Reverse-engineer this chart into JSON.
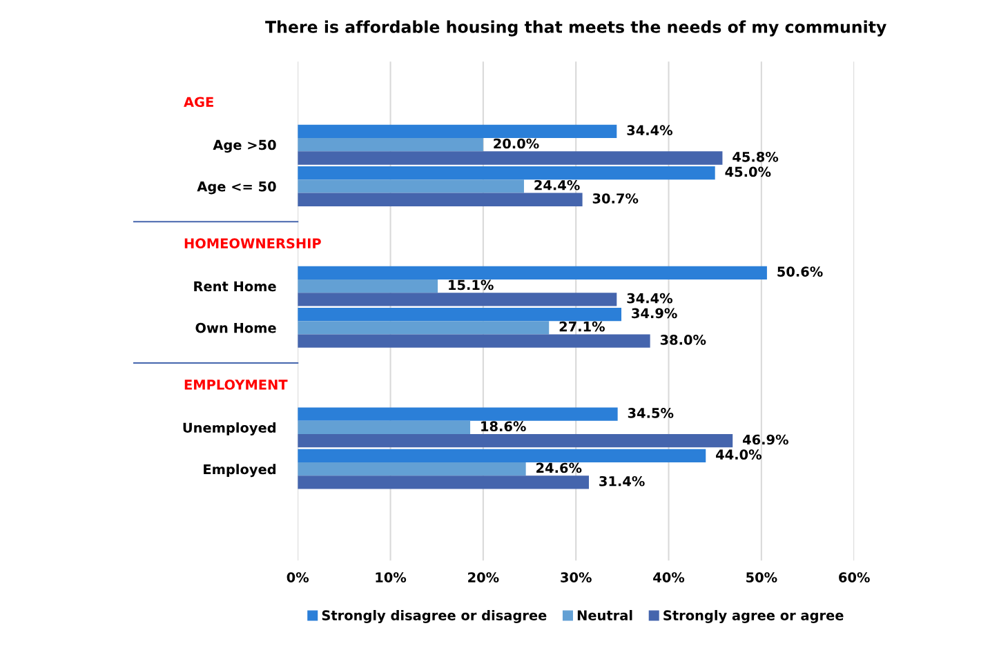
{
  "chart_data": {
    "type": "bar",
    "orientation": "horizontal",
    "title": "There is affordable housing that meets the needs of my community",
    "categories": [
      "Age >50",
      "Age <= 50",
      "Rent Home",
      "Own Home",
      "Unemployed",
      "Employed"
    ],
    "series": [
      {
        "name": "Strongly disagree or disagree",
        "color": "#2b7fd8",
        "values": [
          34.4,
          45.0,
          50.6,
          34.9,
          34.5,
          44.0
        ],
        "value_labels": [
          "34.4%",
          "45.0%",
          "50.6%",
          "34.9%",
          "34.5%",
          "44.0%"
        ]
      },
      {
        "name": "Neutral",
        "color": "#63a0d4",
        "values": [
          20.0,
          24.4,
          15.1,
          27.1,
          18.6,
          24.6
        ],
        "value_labels": [
          "20.0%",
          "24.4%",
          "15.1%",
          "27.1%",
          "18.6%",
          "24.6%"
        ]
      },
      {
        "name": "Strongly agree or agree",
        "color": "#4565ad",
        "values": [
          45.8,
          30.7,
          34.4,
          38.0,
          46.9,
          31.4
        ],
        "value_labels": [
          "45.8%",
          "30.7%",
          "34.4%",
          "38.0%",
          "46.9%",
          "31.4%"
        ]
      }
    ],
    "annotations": [
      "AGE",
      "HOMEOWNERSHIP",
      "EMPLOYMENT"
    ],
    "xlim": [
      0,
      60
    ],
    "xticks": [
      {
        "value": 0,
        "label": "0%"
      },
      {
        "value": 10,
        "label": "10%"
      },
      {
        "value": 20,
        "label": "20%"
      },
      {
        "value": 30,
        "label": "30%"
      },
      {
        "value": 40,
        "label": "40%"
      },
      {
        "value": 50,
        "label": "50%"
      },
      {
        "value": 60,
        "label": "60%"
      }
    ],
    "grid": "x",
    "legend": "bottom"
  }
}
